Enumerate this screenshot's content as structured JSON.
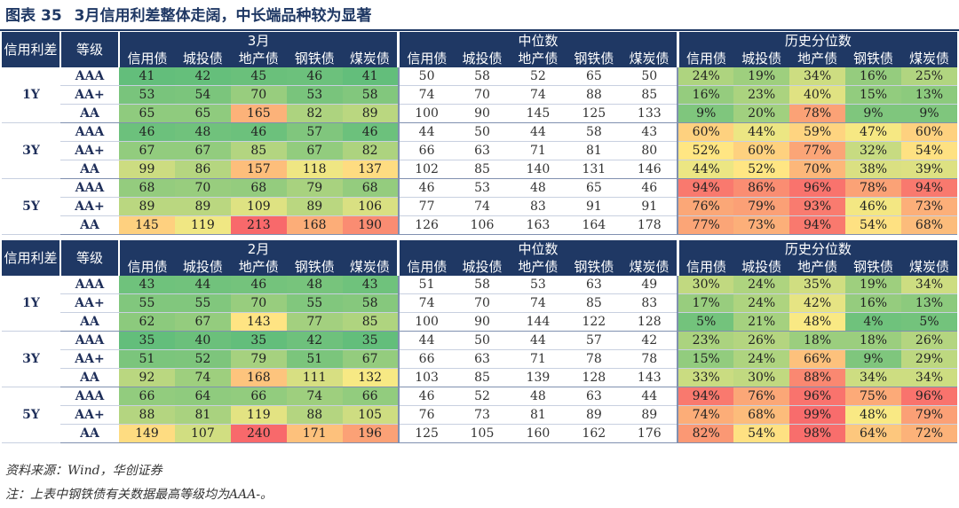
{
  "title": {
    "prefix": "图表",
    "number": "35",
    "text": "3月信用利差整体走阔，中长端品种较为显著"
  },
  "header": {
    "corner": "信用利差",
    "grade": "等级",
    "groups": {
      "march": "3月",
      "feb": "2月",
      "median": "中位数",
      "percentile": "历史分位数"
    },
    "cols": [
      "信用债",
      "城投债",
      "地产债",
      "钢铁债",
      "煤炭债"
    ]
  },
  "terms": [
    "1Y",
    "3Y",
    "5Y"
  ],
  "grades": [
    "AAA",
    "AA+",
    "AA"
  ],
  "march": [
    [
      [
        41,
        42,
        45,
        46,
        41
      ],
      [
        53,
        54,
        70,
        53,
        58
      ],
      [
        65,
        65,
        165,
        82,
        89
      ]
    ],
    [
      [
        46,
        48,
        46,
        57,
        46
      ],
      [
        67,
        67,
        85,
        67,
        82
      ],
      [
        99,
        86,
        157,
        118,
        137
      ]
    ],
    [
      [
        68,
        70,
        68,
        79,
        68
      ],
      [
        89,
        89,
        109,
        89,
        106
      ],
      [
        145,
        119,
        213,
        168,
        190
      ]
    ]
  ],
  "march_median": [
    [
      [
        50,
        58,
        52,
        65,
        50
      ],
      [
        74,
        70,
        74,
        88,
        85
      ],
      [
        100,
        90,
        145,
        125,
        133
      ]
    ],
    [
      [
        44,
        50,
        44,
        58,
        43
      ],
      [
        66,
        63,
        71,
        81,
        80
      ],
      [
        102,
        85,
        140,
        131,
        146
      ]
    ],
    [
      [
        46,
        53,
        48,
        65,
        46
      ],
      [
        77,
        74,
        83,
        91,
        91
      ],
      [
        126,
        106,
        163,
        164,
        178
      ]
    ]
  ],
  "march_pct": [
    [
      [
        "24%",
        "19%",
        "34%",
        "16%",
        "25%"
      ],
      [
        "16%",
        "23%",
        "40%",
        "15%",
        "13%"
      ],
      [
        "9%",
        "20%",
        "78%",
        "9%",
        "9%"
      ]
    ],
    [
      [
        "60%",
        "44%",
        "59%",
        "47%",
        "60%"
      ],
      [
        "52%",
        "60%",
        "77%",
        "32%",
        "54%"
      ],
      [
        "44%",
        "52%",
        "70%",
        "38%",
        "39%"
      ]
    ],
    [
      [
        "94%",
        "86%",
        "96%",
        "78%",
        "94%"
      ],
      [
        "76%",
        "79%",
        "93%",
        "46%",
        "73%"
      ],
      [
        "77%",
        "73%",
        "94%",
        "54%",
        "68%"
      ]
    ]
  ],
  "feb": [
    [
      [
        43,
        44,
        46,
        48,
        43
      ],
      [
        55,
        55,
        70,
        55,
        58
      ],
      [
        62,
        67,
        143,
        77,
        85
      ]
    ],
    [
      [
        35,
        40,
        35,
        42,
        35
      ],
      [
        51,
        52,
        79,
        51,
        67
      ],
      [
        92,
        74,
        168,
        111,
        132
      ]
    ],
    [
      [
        66,
        64,
        66,
        74,
        66
      ],
      [
        88,
        81,
        119,
        88,
        105
      ],
      [
        149,
        107,
        240,
        171,
        196
      ]
    ]
  ],
  "feb_median": [
    [
      [
        51,
        58,
        53,
        63,
        49
      ],
      [
        74,
        70,
        74,
        85,
        83
      ],
      [
        100,
        90,
        144,
        122,
        128
      ]
    ],
    [
      [
        44,
        50,
        44,
        57,
        42
      ],
      [
        66,
        63,
        71,
        78,
        78
      ],
      [
        103,
        85,
        139,
        128,
        143
      ]
    ],
    [
      [
        46,
        52,
        48,
        63,
        44
      ],
      [
        76,
        73,
        81,
        89,
        89
      ],
      [
        125,
        105,
        160,
        162,
        176
      ]
    ]
  ],
  "feb_pct": [
    [
      [
        "30%",
        "24%",
        "35%",
        "19%",
        "34%"
      ],
      [
        "17%",
        "24%",
        "42%",
        "16%",
        "13%"
      ],
      [
        "5%",
        "21%",
        "48%",
        "4%",
        "5%"
      ]
    ],
    [
      [
        "23%",
        "26%",
        "18%",
        "18%",
        "26%"
      ],
      [
        "15%",
        "24%",
        "66%",
        "9%",
        "29%"
      ],
      [
        "33%",
        "30%",
        "88%",
        "34%",
        "34%"
      ]
    ],
    [
      [
        "94%",
        "76%",
        "96%",
        "75%",
        "96%"
      ],
      [
        "74%",
        "68%",
        "99%",
        "48%",
        "79%"
      ],
      [
        "82%",
        "54%",
        "98%",
        "64%",
        "72%"
      ]
    ]
  ],
  "footer": {
    "source": "资料来源：Wind，华创证券",
    "note": "注：上表中钢铁债有关数据最高等级均为AAA-。"
  },
  "colors": {
    "header": "#1f3864",
    "heat_low": "#63be7b",
    "heat_mid": "#ffeb84",
    "heat_high": "#f8696b"
  }
}
